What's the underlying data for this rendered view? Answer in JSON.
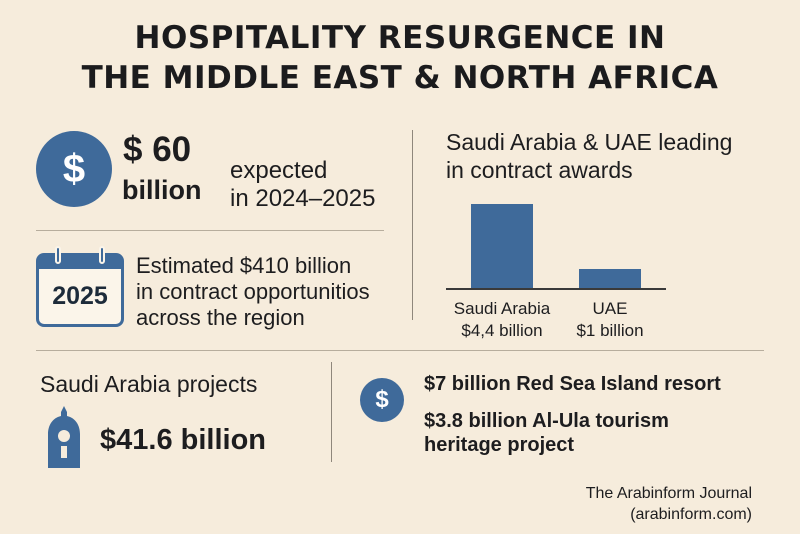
{
  "header": {
    "title_line1": "HOSPITALITY RESURGENCE IN",
    "title_line2": "THE MIDDLE EAST & NORTH AFRICA"
  },
  "stat_expected": {
    "icon": "dollar-icon",
    "icon_glyph": "$",
    "amount": "$ 60",
    "unit": "billion",
    "line1": "expected",
    "line2": "in 2024–2025"
  },
  "stat_opportunities": {
    "icon": "calendar-icon",
    "calendar_year": "2025",
    "line1": "Estimated $410 billion",
    "line2": "in contract opportunitios",
    "line3": "across the region"
  },
  "contract_chart": {
    "heading_line1": "Saudi Arabia & UAE leading",
    "heading_line2": "in contract awards"
  },
  "chart_data": {
    "type": "bar",
    "title": "Saudi Arabia & UAE leading in contract awards",
    "categories": [
      "Saudi Arabia",
      "UAE"
    ],
    "values": [
      4.4,
      1
    ],
    "value_labels": [
      "$4,4 billion",
      "$1 billion"
    ],
    "ylim": [
      0,
      5
    ],
    "grid": false,
    "color": "#3f6a9a"
  },
  "saudi_projects": {
    "heading": "Saudi Arabia projects",
    "icon": "landmark-icon",
    "amount": "$41.6 billion"
  },
  "featured_projects": {
    "icon": "dollar-icon",
    "icon_glyph": "$",
    "item1": "$7 billion Red Sea Island resort",
    "item2_line1": "$3.8 billion Al-Ula tourism",
    "item2_line2": "heritage project"
  },
  "credit": {
    "source": "The Arabinform Journal",
    "url": "(arabinform.com)"
  },
  "colors": {
    "background": "#f6ecdc",
    "accent": "#3f6a9a",
    "text": "#1d1d1f"
  }
}
